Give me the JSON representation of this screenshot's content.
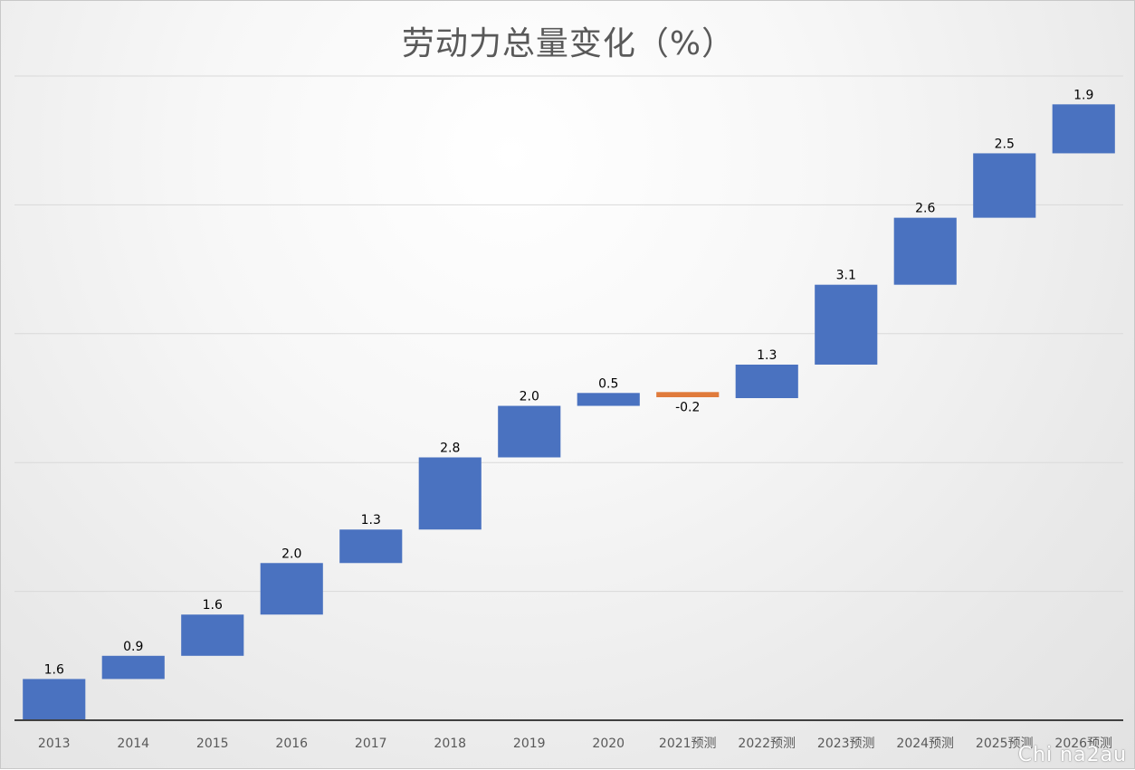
{
  "chart_data": {
    "type": "bar",
    "subtype": "waterfall",
    "title": "劳动力总量变化（%）",
    "categories": [
      "2013",
      "2014",
      "2015",
      "2016",
      "2017",
      "2018",
      "2019",
      "2020",
      "2021预测",
      "2022预测",
      "2023预测",
      "2024预测",
      "2025预测",
      "2026预测"
    ],
    "values": [
      1.6,
      0.9,
      1.6,
      2.0,
      1.3,
      2.8,
      2.0,
      0.5,
      -0.2,
      1.3,
      3.1,
      2.6,
      2.5,
      1.9
    ],
    "data_labels": [
      "1.6",
      "0.9",
      "1.6",
      "2.0",
      "1.3",
      "2.8",
      "2.0",
      "0.5",
      "-0.2",
      "1.3",
      "3.1",
      "2.6",
      "2.5",
      "1.9"
    ],
    "xlabel": "",
    "ylabel": "",
    "ylim": [
      0,
      25
    ],
    "grid": true,
    "legend": "none",
    "colors": {
      "increase": "#4a72c0",
      "decrease": "#e07b3c",
      "grid": "#d9d9d9",
      "axis": "#404040",
      "label": "#000000",
      "tick": "#595959"
    }
  },
  "watermark": "Chi na2au"
}
